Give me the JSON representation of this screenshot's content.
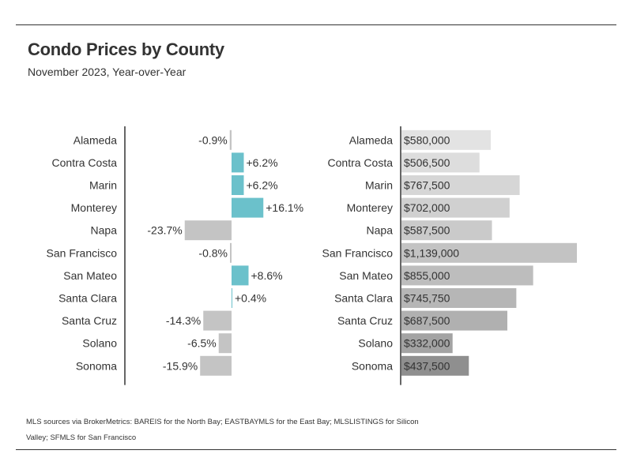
{
  "title": "Condo Prices by County",
  "subtitle": "November 2023, Year-over-Year",
  "source": "MLS sources via BrokerMetrics: BAREIS for the North Bay; EASTBAYMLS for the East Bay; MLSLISTINGS for Silicon Valley; SFMLS for San Francisco",
  "colors": {
    "positive": "#6bc1cb",
    "negative": "#c4c4c4",
    "axis": "#333333"
  },
  "chart_data": [
    {
      "type": "bar",
      "orientation": "horizontal",
      "categories": [
        "Alameda",
        "Contra Costa",
        "Marin",
        "Monterey",
        "Napa",
        "San Francisco",
        "San Mateo",
        "Santa Clara",
        "Santa Cruz",
        "Solano",
        "Sonoma"
      ],
      "values": [
        -0.9,
        6.2,
        6.2,
        16.1,
        -23.7,
        -0.8,
        8.6,
        0.4,
        -14.3,
        -6.5,
        -15.9
      ],
      "data_labels": [
        "-0.9%",
        "+6.2%",
        "+6.2%",
        "+16.1%",
        "-23.7%",
        "-0.8%",
        "+8.6%",
        "+0.4%",
        "-14.3%",
        "-6.5%",
        "-15.9%"
      ],
      "unit": "%"
    },
    {
      "type": "bar",
      "orientation": "horizontal",
      "categories": [
        "Alameda",
        "Contra Costa",
        "Marin",
        "Monterey",
        "Napa",
        "San Francisco",
        "San Mateo",
        "Santa Clara",
        "Santa Cruz",
        "Solano",
        "Sonoma"
      ],
      "values": [
        580000,
        506500,
        767500,
        702000,
        587500,
        1139000,
        855000,
        745750,
        687500,
        332000,
        437500
      ],
      "data_labels": [
        "$580,000",
        "$506,500",
        "$767,500",
        "$702,000",
        "$587,500",
        "$1,139,000",
        "$855,000",
        "$745,750",
        "$687,500",
        "$332,000",
        "$437,500"
      ],
      "bar_colors": [
        "#e3e3e3",
        "#dddddd",
        "#d6d6d6",
        "#d0d0d0",
        "#cacaca",
        "#c3c3c3",
        "#bdbdbd",
        "#b6b6b6",
        "#b0b0b0",
        "#a3a3a3",
        "#8f8f8f"
      ],
      "unit": "$"
    }
  ]
}
